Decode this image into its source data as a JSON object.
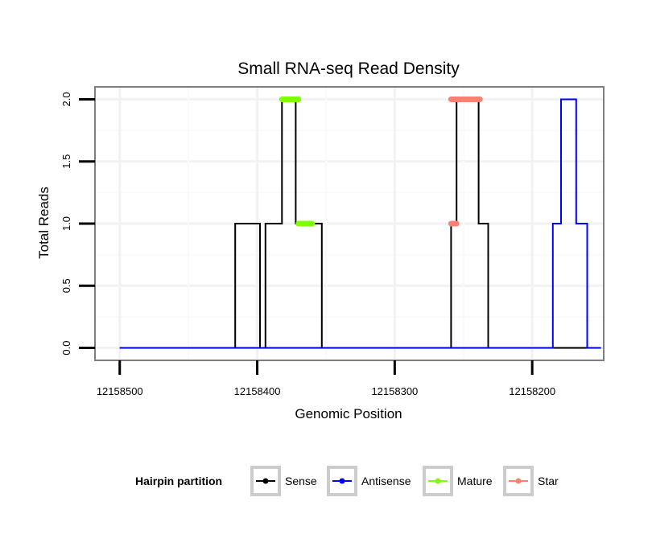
{
  "chart_data": {
    "type": "line",
    "title": "Small RNA-seq Read Density",
    "xlabel": "Genomic Position",
    "ylabel": "Total Reads",
    "xlim": [
      12158518,
      12158148
    ],
    "x_reversed": true,
    "ylim": [
      -0.1,
      2.1
    ],
    "x_ticks": [
      12158500,
      12158400,
      12158300,
      12158200
    ],
    "x_tick_labels": [
      "12158500",
      "12158400",
      "12158300",
      "12158200"
    ],
    "y_ticks": [
      0.0,
      0.5,
      1.0,
      1.5,
      2.0
    ],
    "y_tick_labels": [
      "0.0",
      "0.5",
      "1.0",
      "1.5",
      "2.0"
    ],
    "grid": true,
    "legend": {
      "title": "Hairpin partition",
      "position": "bottom",
      "entries": [
        {
          "label": "Sense",
          "color": "#000000"
        },
        {
          "label": "Antisense",
          "color": "#0000ff"
        },
        {
          "label": "Mature",
          "color": "#7fff00"
        },
        {
          "label": "Star",
          "color": "#fa8072"
        }
      ]
    },
    "series": [
      {
        "name": "Sense",
        "color": "#000000",
        "x": [
          12158500,
          12158416,
          12158416,
          12158398,
          12158398,
          12158394,
          12158394,
          12158382,
          12158382,
          12158372,
          12158372,
          12158362,
          12158362,
          12158361,
          12158361,
          12158353,
          12158353,
          12158259,
          12158259,
          12158255,
          12158255,
          12158239,
          12158239,
          12158235,
          12158235,
          12158232,
          12158232,
          12158150
        ],
        "values": [
          0,
          0,
          1,
          1,
          0,
          0,
          1,
          1,
          2,
          2,
          1,
          1,
          1,
          1,
          1,
          1,
          0,
          0,
          1,
          1,
          2,
          2,
          1,
          1,
          1,
          1,
          0,
          0
        ]
      },
      {
        "name": "Antisense",
        "color": "#0000ff",
        "x": [
          12158500,
          12158185,
          12158185,
          12158183,
          12158183,
          12158179,
          12158179,
          12158168,
          12158168,
          12158160,
          12158160,
          12158150
        ],
        "values": [
          0,
          0,
          1,
          1,
          1,
          1,
          2,
          2,
          1,
          1,
          0,
          0
        ]
      },
      {
        "name": "Mature",
        "color": "#7fff00",
        "segments": [
          {
            "x": [
              12158382,
              12158370
            ],
            "values": [
              2,
              2
            ]
          },
          {
            "x": [
              12158370,
              12158360
            ],
            "values": [
              1,
              1
            ]
          }
        ]
      },
      {
        "name": "Star",
        "color": "#fa8072",
        "segments": [
          {
            "x": [
              12158259,
              12158255
            ],
            "values": [
              1,
              1
            ]
          },
          {
            "x": [
              12158259,
              12158238
            ],
            "values": [
              2,
              2
            ]
          }
        ]
      }
    ]
  }
}
